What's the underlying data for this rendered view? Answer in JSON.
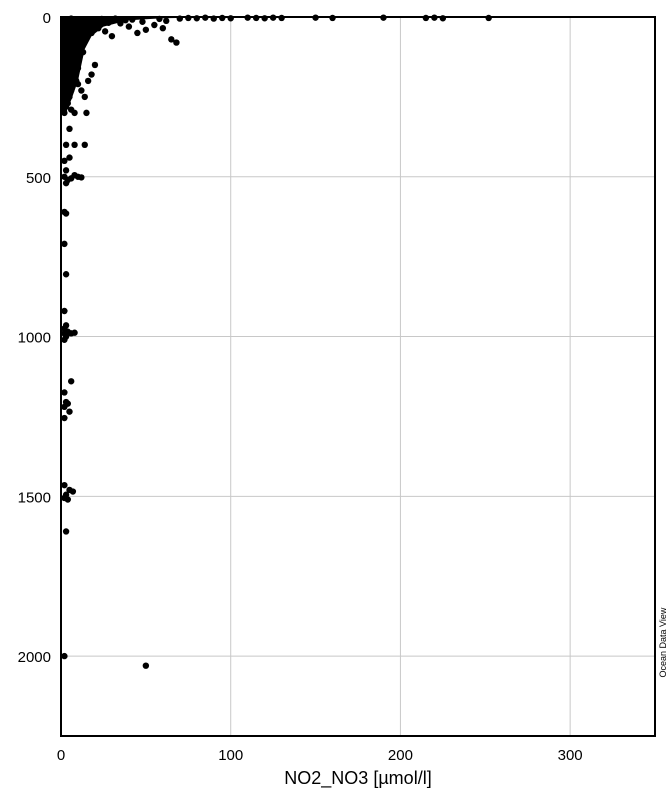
{
  "chart_data": {
    "type": "scatter",
    "title": "",
    "xlabel": "NO2_NO3 [µmol/l]",
    "ylabel": "",
    "xlim": [
      0,
      350
    ],
    "ylim": [
      2250,
      0
    ],
    "y_inverted": true,
    "grid": true,
    "x_ticks": [
      "0",
      "100",
      "200",
      "300"
    ],
    "y_ticks": [
      "0",
      "500",
      "1000",
      "1500",
      "2000"
    ],
    "point_color": "#000000",
    "watermark": "Ocean Data View",
    "points": [
      [
        2,
        10
      ],
      [
        4,
        20
      ],
      [
        6,
        5
      ],
      [
        8,
        30
      ],
      [
        10,
        15
      ],
      [
        12,
        40
      ],
      [
        14,
        8
      ],
      [
        16,
        25
      ],
      [
        18,
        50
      ],
      [
        20,
        12
      ],
      [
        22,
        35
      ],
      [
        24,
        6
      ],
      [
        26,
        45
      ],
      [
        28,
        18
      ],
      [
        30,
        60
      ],
      [
        3,
        60
      ],
      [
        5,
        70
      ],
      [
        7,
        80
      ],
      [
        9,
        90
      ],
      [
        11,
        100
      ],
      [
        13,
        110
      ],
      [
        2,
        120
      ],
      [
        4,
        130
      ],
      [
        6,
        140
      ],
      [
        8,
        150
      ],
      [
        10,
        160
      ],
      [
        3,
        170
      ],
      [
        5,
        180
      ],
      [
        7,
        190
      ],
      [
        9,
        200
      ],
      [
        2,
        210
      ],
      [
        4,
        220
      ],
      [
        6,
        230
      ],
      [
        3,
        240
      ],
      [
        5,
        250
      ],
      [
        2,
        260
      ],
      [
        4,
        270
      ],
      [
        3,
        280
      ],
      [
        6,
        290
      ],
      [
        2,
        300
      ],
      [
        32,
        5
      ],
      [
        35,
        20
      ],
      [
        38,
        10
      ],
      [
        40,
        30
      ],
      [
        42,
        8
      ],
      [
        45,
        50
      ],
      [
        48,
        15
      ],
      [
        50,
        40
      ],
      [
        55,
        25
      ],
      [
        58,
        6
      ],
      [
        60,
        35
      ],
      [
        62,
        12
      ],
      [
        65,
        70
      ],
      [
        68,
        80
      ],
      [
        70,
        5
      ],
      [
        75,
        3
      ],
      [
        80,
        4
      ],
      [
        85,
        2
      ],
      [
        90,
        5
      ],
      [
        95,
        3
      ],
      [
        100,
        4
      ],
      [
        110,
        2
      ],
      [
        115,
        3
      ],
      [
        120,
        4
      ],
      [
        125,
        2
      ],
      [
        130,
        3
      ],
      [
        150,
        2
      ],
      [
        160,
        3
      ],
      [
        190,
        2
      ],
      [
        215,
        3
      ],
      [
        220,
        2
      ],
      [
        225,
        4
      ],
      [
        252,
        3
      ],
      [
        10,
        210
      ],
      [
        12,
        230
      ],
      [
        14,
        250
      ],
      [
        16,
        200
      ],
      [
        18,
        180
      ],
      [
        20,
        150
      ],
      [
        15,
        300
      ],
      [
        8,
        300
      ],
      [
        5,
        350
      ],
      [
        14,
        400
      ],
      [
        8,
        400
      ],
      [
        3,
        400
      ],
      [
        5,
        440
      ],
      [
        2,
        450
      ],
      [
        3,
        480
      ],
      [
        2,
        500
      ],
      [
        4,
        510
      ],
      [
        6,
        505
      ],
      [
        8,
        495
      ],
      [
        10,
        500
      ],
      [
        12,
        502
      ],
      [
        3,
        520
      ],
      [
        2,
        610
      ],
      [
        3,
        615
      ],
      [
        2,
        710
      ],
      [
        3,
        805
      ],
      [
        2,
        920
      ],
      [
        2,
        975
      ],
      [
        3,
        965
      ],
      [
        2,
        990
      ],
      [
        4,
        985
      ],
      [
        6,
        990
      ],
      [
        8,
        988
      ],
      [
        3,
        1000
      ],
      [
        2,
        1010
      ],
      [
        6,
        1140
      ],
      [
        2,
        1175
      ],
      [
        3,
        1205
      ],
      [
        4,
        1210
      ],
      [
        2,
        1220
      ],
      [
        5,
        1235
      ],
      [
        2,
        1255
      ],
      [
        2,
        1465
      ],
      [
        5,
        1480
      ],
      [
        7,
        1485
      ],
      [
        3,
        1495
      ],
      [
        2,
        1505
      ],
      [
        4,
        1510
      ],
      [
        3,
        1610
      ],
      [
        2,
        2000
      ],
      [
        50,
        2030
      ]
    ]
  }
}
